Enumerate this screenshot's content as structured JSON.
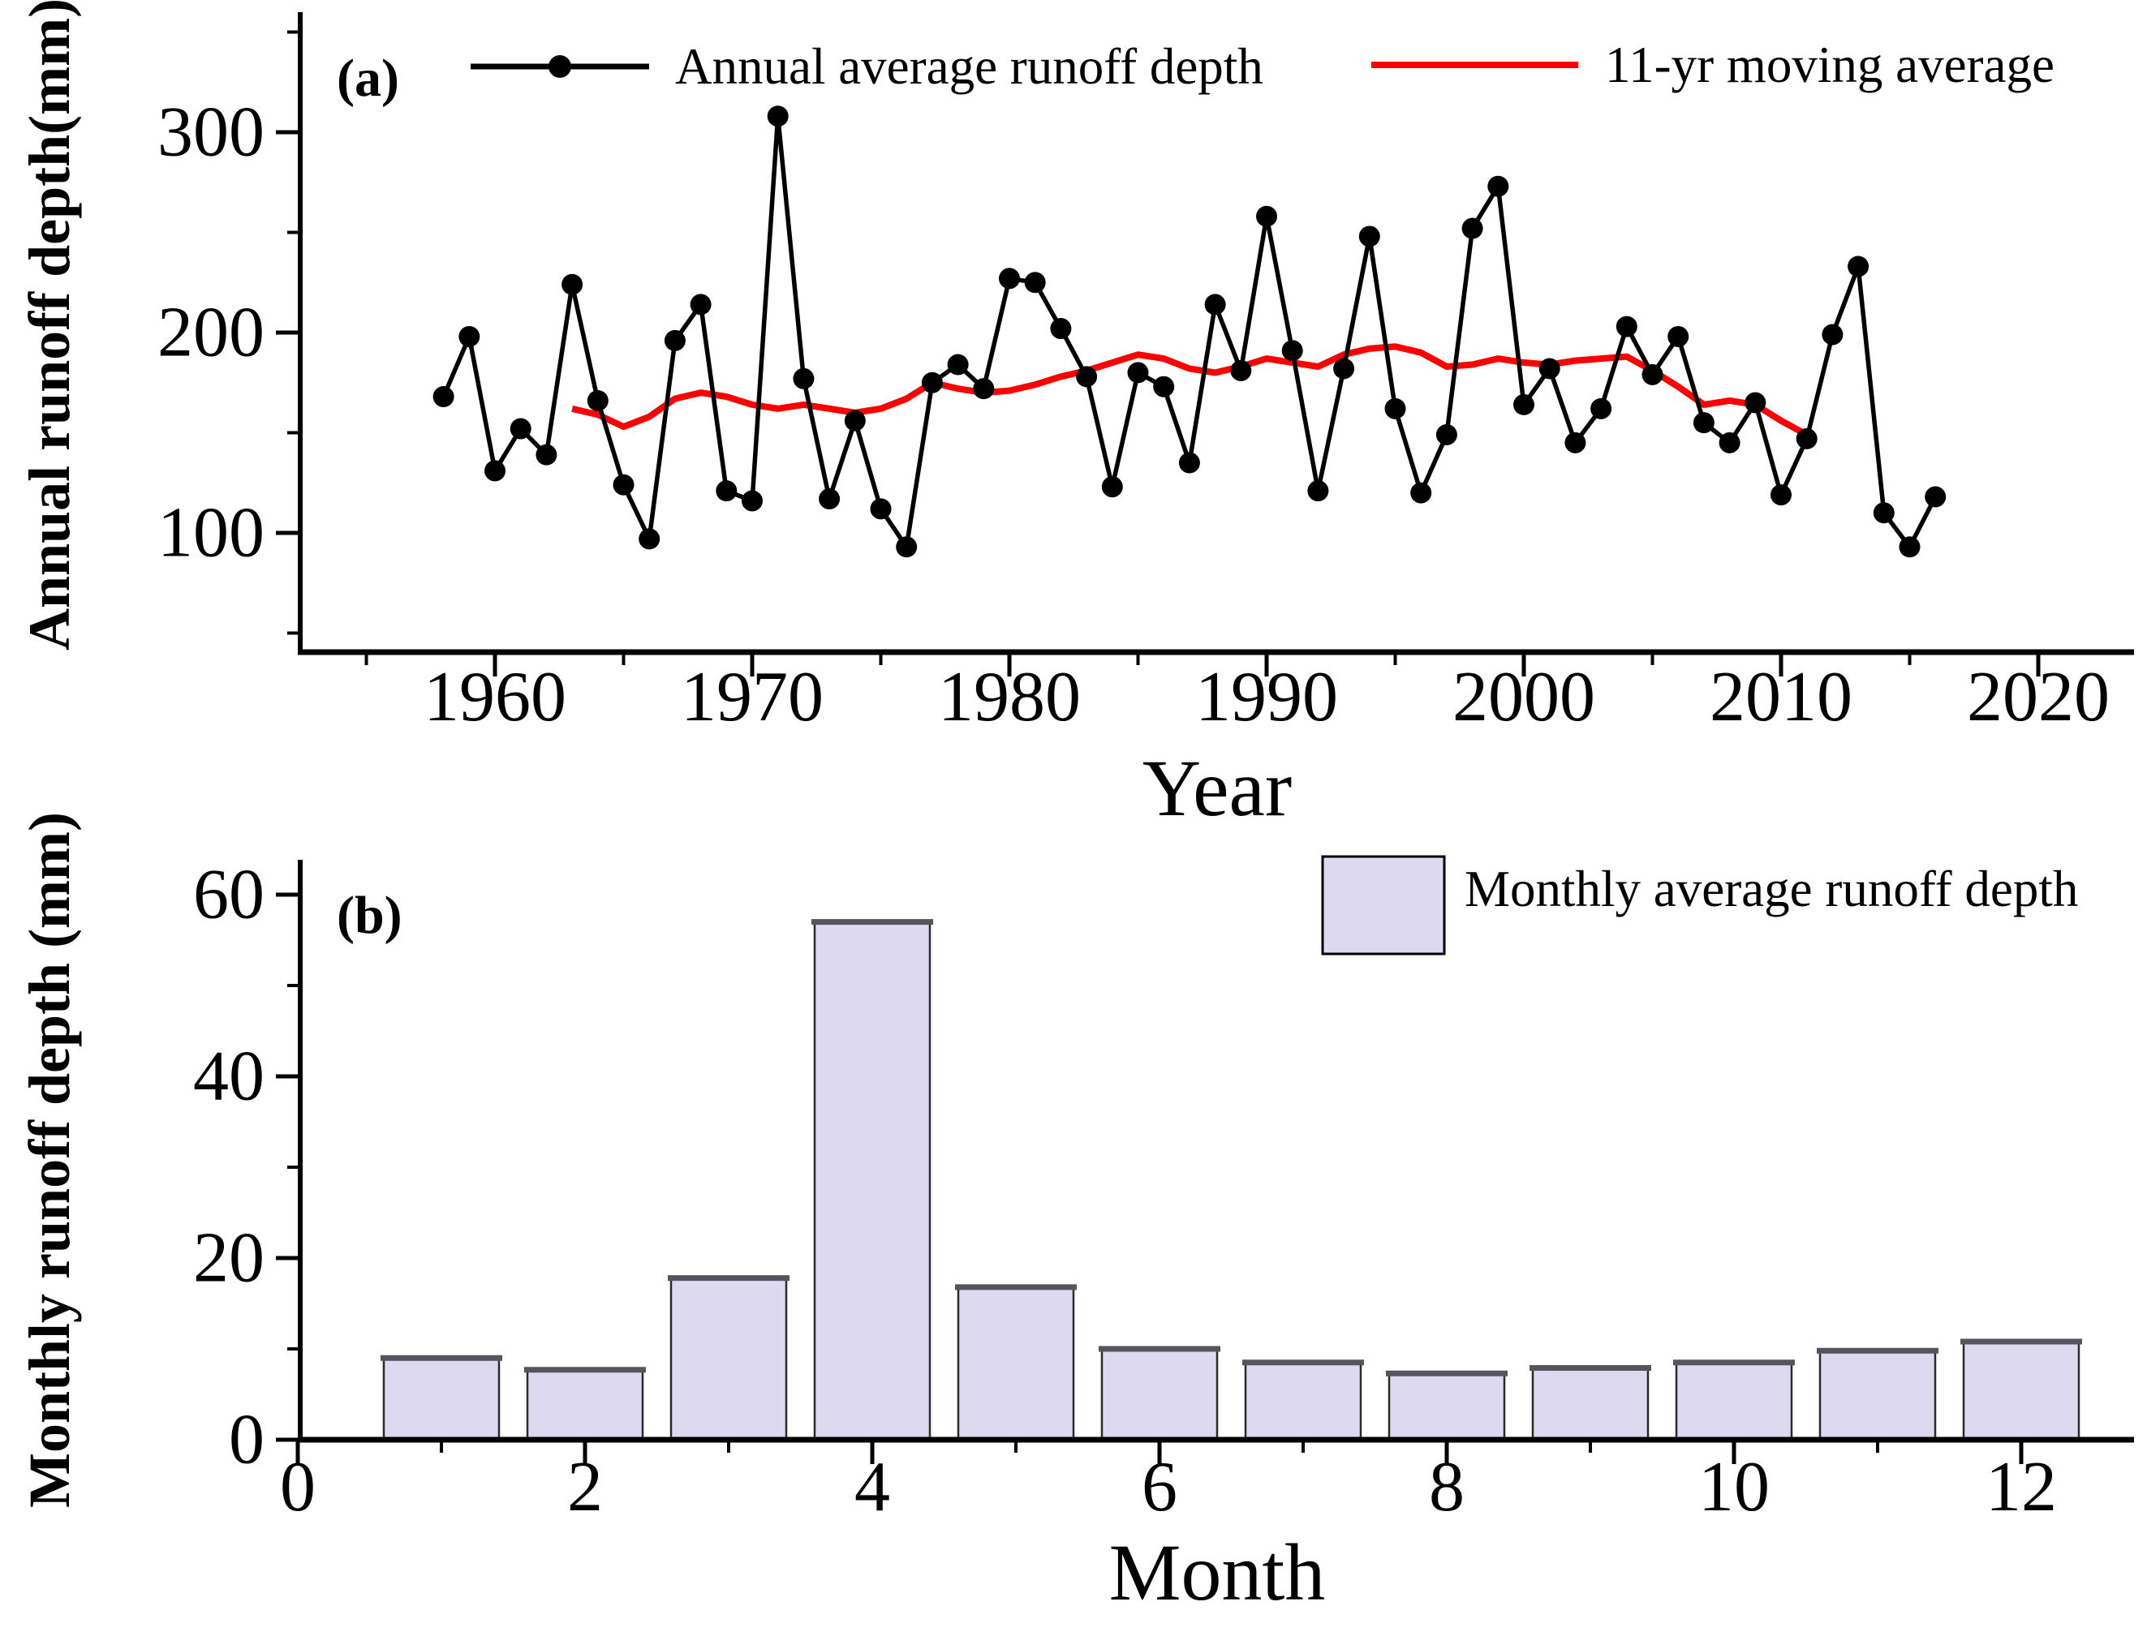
{
  "figure_background": "#ffffff",
  "panel_a": {
    "tag": "(a)",
    "ylabel": "Annual runoff depth(mm)",
    "xlabel": "Year",
    "legend": {
      "annual_label": "Annual average runoff depth",
      "moving_average_label": "11-yr moving average"
    }
  },
  "panel_b": {
    "tag": "(b)",
    "ylabel": "Monthly runoff depth (mm)",
    "xlabel": "Month",
    "legend": {
      "monthly_label": "Monthly average runoff depth"
    }
  },
  "colors": {
    "annual_line": "#000000",
    "moving_average_line": "#ff0000",
    "bar_fill": "#dcd9f0",
    "bar_edge": "#2b2b2b",
    "bar_top_cap": "#55555c",
    "axis": "#000000"
  },
  "chart_data": [
    {
      "type": "line",
      "panel": "a",
      "title": "",
      "xlabel": "Year",
      "ylabel": "Annual runoff depth(mm)",
      "xlim": [
        1952.4,
        2023.7
      ],
      "ylim": [
        43,
        360
      ],
      "grid": false,
      "legend_position": "top",
      "x_major_ticks": [
        1960,
        1970,
        1980,
        1990,
        2000,
        2010,
        2020
      ],
      "x_minor_ticks": [
        1955,
        1965,
        1975,
        1985,
        1995,
        2005,
        2015
      ],
      "y_major_ticks": [
        100,
        200,
        300
      ],
      "y_minor_ticks": [
        50,
        150,
        250,
        350
      ],
      "series": [
        {
          "name": "Annual average runoff depth",
          "color": "#000000",
          "marker": "circle",
          "x": [
            1958,
            1959,
            1960,
            1961,
            1962,
            1963,
            1964,
            1965,
            1966,
            1967,
            1968,
            1969,
            1970,
            1971,
            1972,
            1973,
            1974,
            1975,
            1976,
            1977,
            1978,
            1979,
            1980,
            1981,
            1982,
            1983,
            1984,
            1985,
            1986,
            1987,
            1988,
            1989,
            1990,
            1991,
            1992,
            1993,
            1994,
            1995,
            1996,
            1997,
            1998,
            1999,
            2000,
            2001,
            2002,
            2003,
            2004,
            2005,
            2006,
            2007,
            2008,
            2009,
            2010,
            2011,
            2012,
            2013,
            2014,
            2015,
            2016
          ],
          "values": [
            168,
            198,
            131,
            152,
            139,
            224,
            166,
            124,
            97,
            196,
            214,
            121,
            116,
            308,
            177,
            117,
            156,
            112,
            93,
            175,
            184,
            172,
            227,
            225,
            202,
            178,
            123,
            180,
            173,
            135,
            214,
            181,
            258,
            191,
            121,
            182,
            248,
            162,
            120,
            149,
            252,
            273,
            164,
            182,
            145,
            162,
            203,
            179,
            198,
            155,
            145,
            165,
            119,
            147,
            199,
            233,
            110,
            93,
            118
          ]
        },
        {
          "name": "11-yr moving average",
          "color": "#ff0000",
          "marker": "none",
          "x": [
            1963,
            1964,
            1965,
            1966,
            1967,
            1968,
            1969,
            1970,
            1971,
            1972,
            1973,
            1974,
            1975,
            1976,
            1977,
            1978,
            1979,
            1980,
            1981,
            1982,
            1983,
            1984,
            1985,
            1986,
            1987,
            1988,
            1989,
            1990,
            1991,
            1992,
            1993,
            1994,
            1995,
            1996,
            1997,
            1998,
            1999,
            2000,
            2001,
            2002,
            2003,
            2004,
            2005,
            2006,
            2007,
            2008,
            2009,
            2010,
            2011
          ],
          "values": [
            162,
            159,
            153,
            158,
            167,
            170,
            168,
            164,
            162,
            164,
            162,
            160,
            162,
            167,
            175,
            172,
            170,
            171,
            174,
            178,
            181,
            185,
            189,
            187,
            182,
            180,
            183,
            187,
            185,
            183,
            189,
            192,
            193,
            190,
            183,
            184,
            187,
            185,
            184,
            186,
            187,
            188,
            181,
            173,
            164,
            166,
            164,
            156,
            149
          ]
        }
      ]
    },
    {
      "type": "bar",
      "panel": "b",
      "title": "",
      "xlabel": "Month",
      "ylabel": "Monthly runoff depth (mm)",
      "legend_entry": "Monthly average runoff depth",
      "xlim": [
        0,
        12.8
      ],
      "ylim": [
        0,
        64
      ],
      "grid": false,
      "legend_position": "top-right",
      "x_major_ticks": [
        0,
        2,
        4,
        6,
        8,
        10,
        12
      ],
      "x_minor_ticks": [
        1,
        3,
        5,
        7,
        9,
        11
      ],
      "y_major_ticks": [
        0,
        20,
        40,
        60
      ],
      "y_minor_ticks": [
        10,
        30,
        50
      ],
      "categories": [
        1,
        2,
        3,
        4,
        5,
        6,
        7,
        8,
        9,
        10,
        11,
        12
      ],
      "values": [
        9.0,
        7.7,
        17.8,
        57.0,
        16.8,
        10.0,
        8.5,
        7.3,
        7.9,
        8.5,
        9.8,
        10.8
      ]
    }
  ]
}
